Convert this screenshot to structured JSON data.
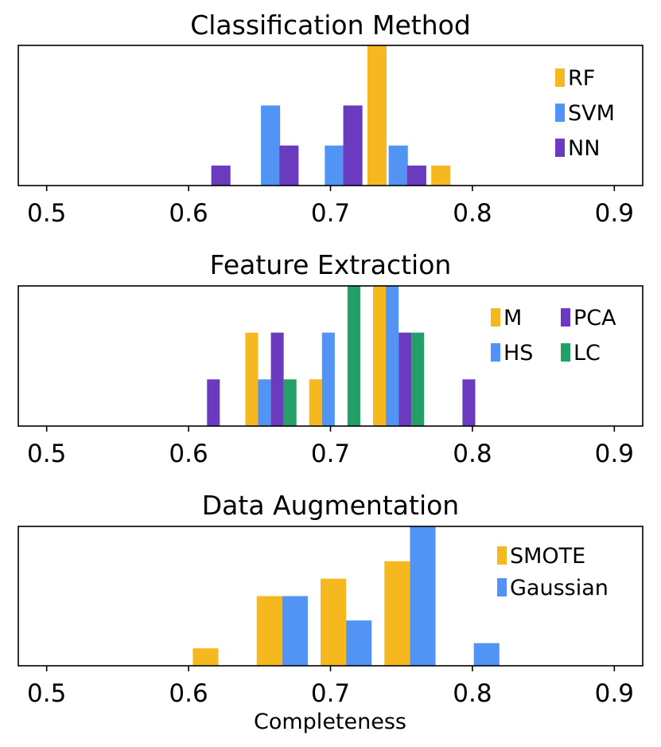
{
  "figure": {
    "xlabel": "Completeness"
  },
  "colors": {
    "yellow": "#f5b81e",
    "blue": "#5194f5",
    "purple": "#6a3bbf",
    "green": "#22a067"
  },
  "chart_data": [
    {
      "type": "bar",
      "title": "Classification Method",
      "xlabel": "",
      "xlim": [
        0.48,
        0.92
      ],
      "ylim": [
        0,
        7
      ],
      "xticks": [
        0.5,
        0.6,
        0.7,
        0.8,
        0.9
      ],
      "xtick_labels": [
        "0.5",
        "0.6",
        "0.7",
        "0.8",
        "0.9"
      ],
      "legend_position": "right, single column",
      "bin_width": 0.0135,
      "series": [
        {
          "name": "RF",
          "color": "#f5b81e",
          "bins": [
            [
              0.726,
              7
            ],
            [
              0.771,
              1
            ]
          ]
        },
        {
          "name": "SVM",
          "color": "#5194f5",
          "bins": [
            [
              0.651,
              4
            ],
            [
              0.696,
              2
            ],
            [
              0.741,
              2
            ]
          ]
        },
        {
          "name": "NN",
          "color": "#6a3bbf",
          "bins": [
            [
              0.616,
              1
            ],
            [
              0.664,
              2
            ],
            [
              0.709,
              4
            ],
            [
              0.754,
              1
            ]
          ]
        }
      ]
    },
    {
      "type": "bar",
      "title": "Feature Extraction",
      "xlabel": "",
      "xlim": [
        0.48,
        0.92
      ],
      "ylim": [
        0,
        3
      ],
      "xticks": [
        0.5,
        0.6,
        0.7,
        0.8,
        0.9
      ],
      "xtick_labels": [
        "0.5",
        "0.6",
        "0.7",
        "0.8",
        "0.9"
      ],
      "legend_position": "top-right, two columns",
      "bin_width": 0.009,
      "series": [
        {
          "name": "M",
          "color": "#f5b81e",
          "bins": [
            [
              0.64,
              2
            ],
            [
              0.685,
              1
            ],
            [
              0.73,
              3
            ]
          ]
        },
        {
          "name": "PCA",
          "color": "#6a3bbf",
          "bins": [
            [
              0.613,
              1
            ],
            [
              0.658,
              2
            ],
            [
              0.748,
              2
            ],
            [
              0.793,
              1
            ]
          ]
        },
        {
          "name": "HS",
          "color": "#5194f5",
          "bins": [
            [
              0.649,
              1
            ],
            [
              0.694,
              2
            ],
            [
              0.739,
              3
            ]
          ]
        },
        {
          "name": "LC",
          "color": "#22a067",
          "bins": [
            [
              0.667,
              1
            ],
            [
              0.712,
              3
            ],
            [
              0.757,
              2
            ]
          ]
        }
      ]
    },
    {
      "type": "bar",
      "title": "Data Augmentation",
      "xlabel": "Completeness",
      "xlim": [
        0.48,
        0.92
      ],
      "ylim": [
        0,
        8
      ],
      "xticks": [
        0.5,
        0.6,
        0.7,
        0.8,
        0.9
      ],
      "xtick_labels": [
        "0.5",
        "0.6",
        "0.7",
        "0.8",
        "0.9"
      ],
      "legend_position": "right, single column",
      "bin_width": 0.018,
      "series": [
        {
          "name": "SMOTE",
          "color": "#f5b81e",
          "bins": [
            [
              0.603,
              1
            ],
            [
              0.648,
              4
            ],
            [
              0.693,
              5
            ],
            [
              0.738,
              6
            ]
          ]
        },
        {
          "name": "Gaussian",
          "color": "#5194f5",
          "bins": [
            [
              0.666,
              4
            ],
            [
              0.711,
              2.6
            ],
            [
              0.756,
              8
            ],
            [
              0.801,
              1.3
            ]
          ]
        }
      ]
    }
  ]
}
